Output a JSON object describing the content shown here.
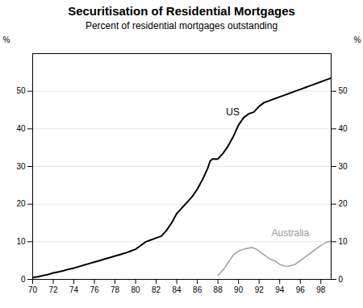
{
  "chart_data": {
    "type": "line",
    "title": "Securitisation of Residential Mortgages",
    "subtitle": "Percent of residential mortgages outstanding",
    "ylabel": "%",
    "y2label": "%",
    "xlim": [
      70,
      99
    ],
    "xticks": [
      70,
      72,
      74,
      76,
      78,
      80,
      82,
      84,
      86,
      88,
      90,
      92,
      94,
      96,
      98
    ],
    "ylim": [
      0,
      60
    ],
    "yticks": [
      0,
      10,
      20,
      30,
      40,
      50
    ],
    "y2lim": [
      0,
      60
    ],
    "y2ticks": [
      0,
      10,
      20,
      30,
      40,
      50
    ],
    "grid": true,
    "series": [
      {
        "name": "US",
        "color": "#000000",
        "x": [
          70,
          70.5,
          71,
          71.5,
          72,
          72.5,
          73,
          73.5,
          74,
          74.5,
          75,
          75.5,
          76,
          76.5,
          77,
          77.5,
          78,
          78.5,
          79,
          79.5,
          80,
          80.5,
          81,
          81.5,
          82,
          82.5,
          83,
          83.5,
          84,
          84.5,
          85,
          85.5,
          86,
          86.5,
          87,
          87.25,
          87.5,
          87.75,
          88,
          88.5,
          89,
          89.5,
          90,
          90.5,
          91,
          91.5,
          92,
          92.5,
          93,
          93.5,
          94,
          94.5,
          95,
          95.5,
          96,
          96.5,
          97,
          97.5,
          98,
          98.5,
          99
        ],
        "values": [
          0.5,
          0.7,
          1.0,
          1.3,
          1.7,
          2.0,
          2.3,
          2.7,
          3.0,
          3.4,
          3.8,
          4.2,
          4.6,
          5.0,
          5.4,
          5.8,
          6.2,
          6.6,
          7.0,
          7.5,
          8.0,
          9.0,
          10.0,
          10.5,
          11.0,
          11.5,
          13.0,
          15.0,
          17.5,
          19.0,
          20.5,
          22.0,
          24.0,
          26.5,
          29.5,
          31.5,
          32.0,
          32.0,
          32.0,
          33.5,
          35.5,
          38.0,
          41.0,
          43.0,
          44.0,
          44.5,
          46.0,
          47.0,
          47.5,
          48.0,
          48.5,
          49.0,
          49.5,
          50.0,
          50.5,
          51.0,
          51.5,
          52.0,
          52.5,
          53.0,
          53.5
        ]
      },
      {
        "name": "Australia",
        "color": "#999999",
        "x": [
          88,
          88.5,
          89,
          89.25,
          89.5,
          89.75,
          90,
          90.25,
          90.5,
          90.75,
          91,
          91.25,
          91.5,
          91.75,
          92,
          92.25,
          92.5,
          92.75,
          93,
          93.25,
          93.5,
          93.75,
          94,
          94.25,
          94.5,
          94.75,
          95,
          95.5,
          96,
          96.5,
          97,
          97.5,
          98,
          98.5,
          99
        ],
        "values": [
          1.0,
          2.5,
          4.5,
          5.5,
          6.5,
          7.0,
          7.5,
          7.8,
          8.0,
          8.2,
          8.3,
          8.5,
          8.3,
          8.0,
          7.5,
          7.0,
          6.5,
          6.0,
          5.5,
          5.2,
          5.0,
          4.5,
          4.0,
          3.8,
          3.5,
          3.5,
          3.6,
          4.0,
          5.0,
          6.0,
          7.0,
          8.0,
          9.0,
          9.8,
          10.2
        ]
      }
    ],
    "annotations": [
      {
        "text": "US",
        "x": 88.8,
        "y": 44.5,
        "color": "#000000"
      },
      {
        "text": "Australia",
        "x": 93.2,
        "y": 12.2,
        "color": "#999999"
      }
    ]
  }
}
